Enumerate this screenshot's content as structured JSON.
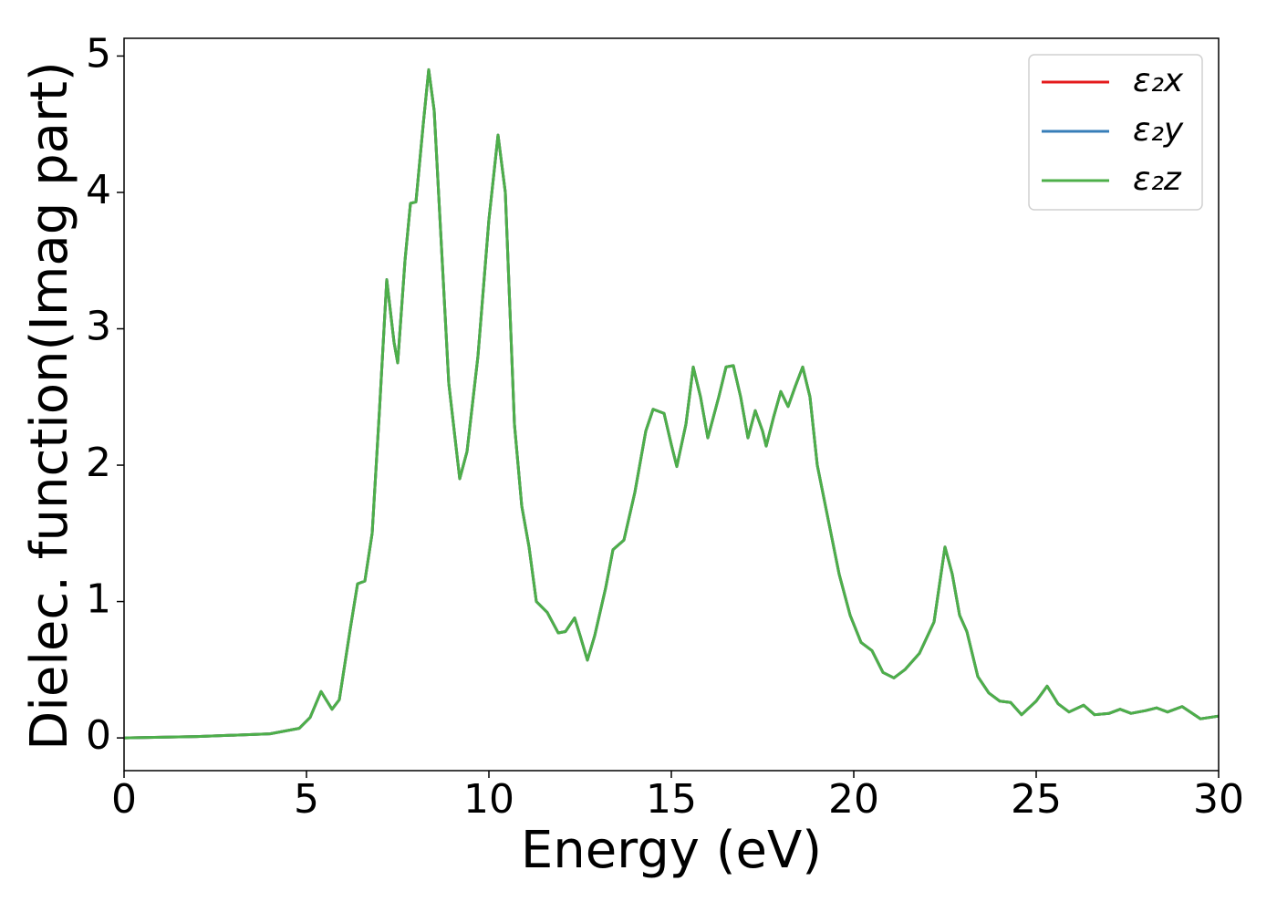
{
  "chart_data": {
    "type": "line",
    "xlabel": "Energy (eV)",
    "ylabel": "Dielec. function(Imag part)",
    "xlim": [
      0,
      30
    ],
    "xticks": [
      0,
      5,
      10,
      15,
      20,
      25,
      30
    ],
    "ylim": [
      -0.24,
      5.13
    ],
    "yticks": [
      0,
      1,
      2,
      3,
      4,
      5
    ],
    "legend": "upper right",
    "grid": false,
    "x": [
      0,
      2,
      4,
      4.8,
      5.1,
      5.4,
      5.7,
      5.9,
      6.2,
      6.4,
      6.6,
      6.8,
      7.0,
      7.2,
      7.4,
      7.5,
      7.7,
      7.85,
      8.0,
      8.2,
      8.35,
      8.5,
      8.7,
      8.9,
      9.2,
      9.4,
      9.7,
      10.0,
      10.25,
      10.45,
      10.7,
      10.9,
      11.1,
      11.3,
      11.6,
      11.9,
      12.1,
      12.35,
      12.5,
      12.7,
      12.9,
      13.2,
      13.4,
      13.7,
      14.0,
      14.3,
      14.5,
      14.8,
      15.0,
      15.15,
      15.4,
      15.6,
      15.8,
      16.0,
      16.3,
      16.5,
      16.7,
      16.9,
      17.1,
      17.3,
      17.5,
      17.6,
      17.8,
      18.0,
      18.2,
      18.4,
      18.6,
      18.8,
      19.0,
      19.3,
      19.6,
      19.9,
      20.2,
      20.5,
      20.8,
      21.1,
      21.4,
      21.8,
      22.2,
      22.5,
      22.7,
      22.9,
      23.1,
      23.4,
      23.7,
      24.0,
      24.3,
      24.6,
      25.0,
      25.3,
      25.6,
      25.9,
      26.3,
      26.6,
      27.0,
      27.3,
      27.6,
      28.0,
      28.3,
      28.6,
      29.0,
      29.5,
      30.0
    ],
    "series": [
      {
        "name": "ε₂x",
        "color": "#e41a1c",
        "values": [
          0,
          0.01,
          0.03,
          0.07,
          0.15,
          0.34,
          0.21,
          0.28,
          0.8,
          1.13,
          1.15,
          1.5,
          2.4,
          3.36,
          2.9,
          2.75,
          3.5,
          3.92,
          3.93,
          4.5,
          4.9,
          4.6,
          3.6,
          2.6,
          1.9,
          2.1,
          2.8,
          3.8,
          4.42,
          4.0,
          2.3,
          1.7,
          1.4,
          1.0,
          0.92,
          0.77,
          0.78,
          0.88,
          0.75,
          0.57,
          0.75,
          1.1,
          1.38,
          1.45,
          1.8,
          2.25,
          2.41,
          2.38,
          2.15,
          1.99,
          2.3,
          2.72,
          2.5,
          2.2,
          2.5,
          2.72,
          2.73,
          2.5,
          2.2,
          2.4,
          2.25,
          2.14,
          2.35,
          2.54,
          2.43,
          2.58,
          2.72,
          2.5,
          2.0,
          1.6,
          1.2,
          0.9,
          0.7,
          0.64,
          0.48,
          0.44,
          0.5,
          0.62,
          0.85,
          1.4,
          1.2,
          0.9,
          0.78,
          0.45,
          0.33,
          0.27,
          0.26,
          0.17,
          0.27,
          0.38,
          0.25,
          0.19,
          0.24,
          0.17,
          0.18,
          0.21,
          0.18,
          0.2,
          0.22,
          0.19,
          0.23,
          0.14,
          0.16
        ]
      },
      {
        "name": "ε₂y",
        "color": "#377eb8",
        "values": [
          0,
          0.01,
          0.03,
          0.07,
          0.15,
          0.34,
          0.21,
          0.28,
          0.8,
          1.13,
          1.15,
          1.5,
          2.4,
          3.36,
          2.9,
          2.75,
          3.5,
          3.92,
          3.93,
          4.5,
          4.9,
          4.6,
          3.6,
          2.6,
          1.9,
          2.1,
          2.8,
          3.8,
          4.42,
          4.0,
          2.3,
          1.7,
          1.4,
          1.0,
          0.92,
          0.77,
          0.78,
          0.88,
          0.75,
          0.57,
          0.75,
          1.1,
          1.38,
          1.45,
          1.8,
          2.25,
          2.41,
          2.38,
          2.15,
          1.99,
          2.3,
          2.72,
          2.5,
          2.2,
          2.5,
          2.72,
          2.73,
          2.5,
          2.2,
          2.4,
          2.25,
          2.14,
          2.35,
          2.54,
          2.43,
          2.58,
          2.72,
          2.5,
          2.0,
          1.6,
          1.2,
          0.9,
          0.7,
          0.64,
          0.48,
          0.44,
          0.5,
          0.62,
          0.85,
          1.4,
          1.2,
          0.9,
          0.78,
          0.45,
          0.33,
          0.27,
          0.26,
          0.17,
          0.27,
          0.38,
          0.25,
          0.19,
          0.24,
          0.17,
          0.18,
          0.21,
          0.18,
          0.2,
          0.22,
          0.19,
          0.23,
          0.14,
          0.16
        ]
      },
      {
        "name": "ε₂z",
        "color": "#4daf4a",
        "values": [
          0,
          0.01,
          0.03,
          0.07,
          0.15,
          0.34,
          0.21,
          0.28,
          0.8,
          1.13,
          1.15,
          1.5,
          2.4,
          3.36,
          2.9,
          2.75,
          3.5,
          3.92,
          3.93,
          4.5,
          4.9,
          4.6,
          3.6,
          2.6,
          1.9,
          2.1,
          2.8,
          3.8,
          4.42,
          4.0,
          2.3,
          1.7,
          1.4,
          1.0,
          0.92,
          0.77,
          0.78,
          0.88,
          0.75,
          0.57,
          0.75,
          1.1,
          1.38,
          1.45,
          1.8,
          2.25,
          2.41,
          2.38,
          2.15,
          1.99,
          2.3,
          2.72,
          2.5,
          2.2,
          2.5,
          2.72,
          2.73,
          2.5,
          2.2,
          2.4,
          2.25,
          2.14,
          2.35,
          2.54,
          2.43,
          2.58,
          2.72,
          2.5,
          2.0,
          1.6,
          1.2,
          0.9,
          0.7,
          0.64,
          0.48,
          0.44,
          0.5,
          0.62,
          0.85,
          1.4,
          1.2,
          0.9,
          0.78,
          0.45,
          0.33,
          0.27,
          0.26,
          0.17,
          0.27,
          0.38,
          0.25,
          0.19,
          0.24,
          0.17,
          0.18,
          0.21,
          0.18,
          0.2,
          0.22,
          0.19,
          0.23,
          0.14,
          0.16
        ]
      }
    ]
  }
}
